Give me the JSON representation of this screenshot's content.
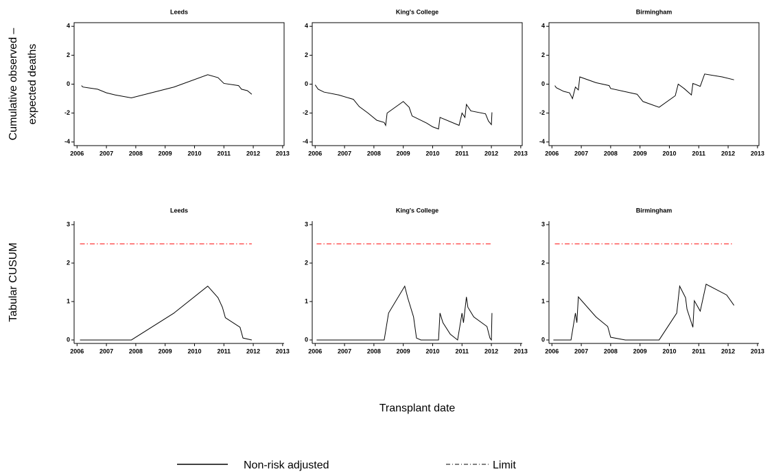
{
  "chart_data": [
    {
      "type": "line",
      "title": "Leeds",
      "ylabel": [
        "Cumulative observed –",
        "expected deaths"
      ],
      "xlim": [
        2005.9,
        2013.05
      ],
      "xticks": [
        2006,
        2007,
        2008,
        2009,
        2010,
        2011,
        2012,
        2013
      ],
      "ylim": [
        -4.25,
        4.25
      ],
      "yticks": [
        -4,
        -2,
        0,
        2,
        4
      ],
      "series": [
        {
          "name": "Non-risk adjusted",
          "color": "#000000",
          "x": [
            2006.15,
            2006.2,
            2006.7,
            2007.0,
            2007.3,
            2007.85,
            2009.3,
            2010.45,
            2010.8,
            2011.0,
            2011.5,
            2011.6,
            2011.8,
            2011.95
          ],
          "values": [
            -0.1,
            -0.2,
            -0.35,
            -0.6,
            -0.75,
            -0.95,
            -0.2,
            0.65,
            0.45,
            0.05,
            -0.1,
            -0.35,
            -0.45,
            -0.7
          ]
        }
      ]
    },
    {
      "type": "line",
      "title": "King's College",
      "xlim": [
        2005.9,
        2013.05
      ],
      "xticks": [
        2006,
        2007,
        2008,
        2009,
        2010,
        2011,
        2012,
        2013
      ],
      "ylim": [
        -4.25,
        4.25
      ],
      "yticks": [
        -4,
        -2,
        0,
        2,
        4
      ],
      "series": [
        {
          "name": "Non-risk adjusted",
          "color": "#000000",
          "x": [
            2006.0,
            2006.1,
            2006.3,
            2006.8,
            2007.3,
            2007.5,
            2007.8,
            2008.1,
            2008.35,
            2008.4,
            2008.45,
            2009.0,
            2009.2,
            2009.3,
            2009.8,
            2010.0,
            2010.2,
            2010.25,
            2010.9,
            2011.0,
            2011.1,
            2011.15,
            2011.3,
            2011.8,
            2011.9,
            2012.0,
            2012.02
          ],
          "values": [
            -0.05,
            -0.35,
            -0.55,
            -0.75,
            -1.05,
            -1.55,
            -2.0,
            -2.5,
            -2.65,
            -2.85,
            -2.0,
            -1.2,
            -1.6,
            -2.2,
            -2.7,
            -2.95,
            -3.1,
            -2.3,
            -2.85,
            -2.0,
            -2.3,
            -1.4,
            -1.85,
            -2.05,
            -2.55,
            -2.8,
            -1.95
          ]
        }
      ]
    },
    {
      "type": "line",
      "title": "Birmingham",
      "xlim": [
        2005.9,
        2013.05
      ],
      "xticks": [
        2006,
        2007,
        2008,
        2009,
        2010,
        2011,
        2012,
        2013
      ],
      "ylim": [
        -4.25,
        4.25
      ],
      "yticks": [
        -4,
        -2,
        0,
        2,
        4
      ],
      "series": [
        {
          "name": "Non-risk adjusted",
          "color": "#000000",
          "x": [
            2006.1,
            2006.15,
            2006.4,
            2006.6,
            2006.7,
            2006.8,
            2006.9,
            2006.95,
            2007.5,
            2007.95,
            2008.0,
            2008.9,
            2009.1,
            2009.65,
            2010.2,
            2010.3,
            2010.5,
            2010.75,
            2010.8,
            2011.05,
            2011.2,
            2011.8,
            2012.2
          ],
          "values": [
            -0.1,
            -0.25,
            -0.5,
            -0.6,
            -1.0,
            -0.2,
            -0.4,
            0.5,
            0.1,
            -0.1,
            -0.3,
            -0.7,
            -1.2,
            -1.6,
            -0.8,
            0.0,
            -0.3,
            -0.75,
            0.05,
            -0.15,
            0.7,
            0.5,
            0.3
          ]
        }
      ]
    },
    {
      "type": "line",
      "title": "Leeds",
      "ylabel": [
        "Tabular CUSUM"
      ],
      "xlim": [
        2005.9,
        2013.05
      ],
      "xticks": [
        2006,
        2007,
        2008,
        2009,
        2010,
        2011,
        2012,
        2013
      ],
      "ylim": [
        -0.09,
        3.09
      ],
      "yticks": [
        0,
        1,
        2,
        3
      ],
      "series": [
        {
          "name": "Non-risk adjusted",
          "color": "#000000",
          "x": [
            2006.1,
            2007.85,
            2009.3,
            2010.45,
            2010.8,
            2010.95,
            2011.05,
            2011.55,
            2011.65,
            2011.95
          ],
          "values": [
            0,
            0,
            0.7,
            1.4,
            1.1,
            0.85,
            0.58,
            0.33,
            0.05,
            0
          ]
        },
        {
          "name": "Limit",
          "color": "#ff0000",
          "dash": "dash-dot",
          "x": [
            2006.1,
            2011.95
          ],
          "values": [
            2.5,
            2.5
          ]
        }
      ]
    },
    {
      "type": "line",
      "title": "King's College",
      "xlabel": "Transplant date",
      "xlim": [
        2005.9,
        2013.05
      ],
      "xticks": [
        2006,
        2007,
        2008,
        2009,
        2010,
        2011,
        2012,
        2013
      ],
      "ylim": [
        -0.09,
        3.09
      ],
      "yticks": [
        0,
        1,
        2,
        3
      ],
      "series": [
        {
          "name": "Non-risk adjusted",
          "color": "#000000",
          "x": [
            2006.05,
            2008.35,
            2008.5,
            2009.05,
            2009.15,
            2009.35,
            2009.45,
            2009.6,
            2010.2,
            2010.25,
            2010.35,
            2010.6,
            2010.85,
            2011.0,
            2011.05,
            2011.15,
            2011.2,
            2011.4,
            2011.85,
            2011.95,
            2012.0,
            2012.02
          ],
          "values": [
            0,
            0,
            0.7,
            1.4,
            1.1,
            0.6,
            0.05,
            0,
            0,
            0.7,
            0.45,
            0.15,
            0,
            0.7,
            0.45,
            1.12,
            0.85,
            0.6,
            0.35,
            0.05,
            0,
            0.7
          ]
        },
        {
          "name": "Limit",
          "color": "#ff0000",
          "dash": "dash-dot",
          "x": [
            2006.05,
            2012.0
          ],
          "values": [
            2.5,
            2.5
          ]
        }
      ]
    },
    {
      "type": "line",
      "title": "Birmingham",
      "xlim": [
        2005.9,
        2013.05
      ],
      "xticks": [
        2006,
        2007,
        2008,
        2009,
        2010,
        2011,
        2012,
        2013
      ],
      "ylim": [
        -0.09,
        3.09
      ],
      "yticks": [
        0,
        1,
        2,
        3
      ],
      "series": [
        {
          "name": "Non-risk adjusted",
          "color": "#000000",
          "x": [
            2006.05,
            2006.65,
            2006.8,
            2006.85,
            2006.9,
            2007.5,
            2007.9,
            2008.0,
            2008.5,
            2009.65,
            2010.25,
            2010.35,
            2010.55,
            2010.6,
            2010.8,
            2010.85,
            2011.05,
            2011.25,
            2011.95,
            2012.2
          ],
          "values": [
            0,
            0,
            0.7,
            0.45,
            1.12,
            0.6,
            0.35,
            0.07,
            0,
            0,
            0.7,
            1.4,
            1.1,
            0.8,
            0.33,
            1.02,
            0.75,
            1.45,
            1.17,
            0.9
          ]
        },
        {
          "name": "Limit",
          "color": "#ff0000",
          "dash": "dash-dot",
          "x": [
            2006.1,
            2012.2
          ],
          "values": [
            2.5,
            2.5
          ]
        }
      ]
    }
  ]
}
